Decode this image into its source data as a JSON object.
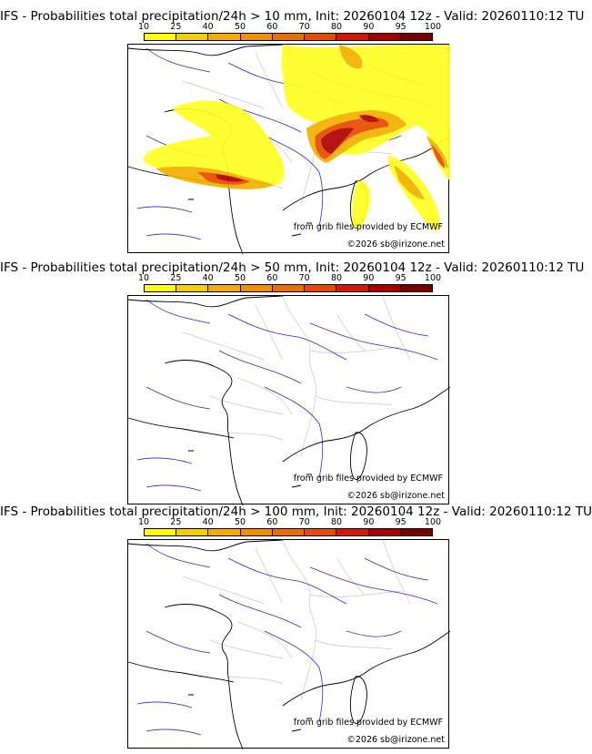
{
  "scale_labels": [
    "10",
    "25",
    "40",
    "50",
    "60",
    "70",
    "80",
    "90",
    "95",
    "100"
  ],
  "scale_colors": [
    "#ffff00",
    "#f5d000",
    "#f0ad00",
    "#f09000",
    "#ec6e00",
    "#e44a00",
    "#d21a00",
    "#a80000",
    "#7a0000"
  ],
  "panels": [
    {
      "title": "IFS - Probabilities total precipitation/24h > 10 mm, Init: 20260104 12z - Valid: 20260110:12 TU"
    },
    {
      "title": "IFS - Probabilities total precipitation/24h > 50 mm, Init: 20260104 12z - Valid: 20260110:12 TU"
    },
    {
      "title": "IFS - Probabilities total precipitation/24h > 100 mm, Init: 20260104 12z - Valid: 20260110:12 TU"
    }
  ],
  "credit_source": "from grib files provided by ECMWF",
  "credit_copyright": "©2026 sb@irizone.net",
  "map_colors": {
    "coast": "#000000",
    "borders": "#c8c8c8",
    "rivers": "#2a2ad8"
  }
}
